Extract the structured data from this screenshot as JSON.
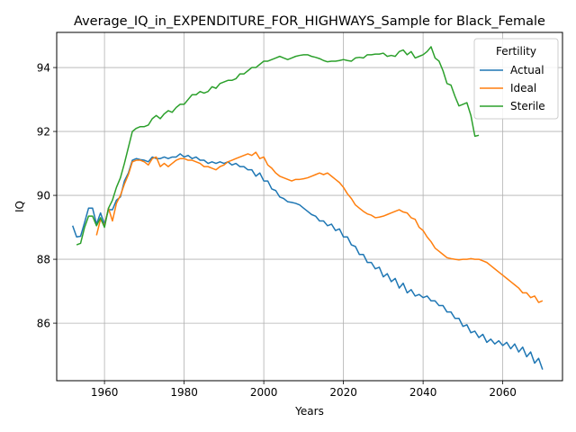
{
  "chart_data": {
    "type": "line",
    "title": "Average_IQ_in_EXPENDITURE_FOR_HIGHWAYS_Sample for Black_Female",
    "xlabel": "Years",
    "ylabel": "IQ",
    "xlim": [
      1948,
      2075
    ],
    "ylim": [
      84.2,
      95.1
    ],
    "xticks": [
      1960,
      1980,
      2000,
      2020,
      2040,
      2060
    ],
    "yticks": [
      86,
      88,
      90,
      92,
      94
    ],
    "grid": true,
    "legend": {
      "title": "Fertility",
      "placement": "top-right"
    },
    "series": [
      {
        "name": "Actual",
        "color": "#1f77b4",
        "x": [
          1952,
          1953,
          1954,
          1955,
          1956,
          1957,
          1958,
          1959,
          1960,
          1961,
          1962,
          1963,
          1964,
          1965,
          1966,
          1967,
          1968,
          1969,
          1970,
          1971,
          1972,
          1973,
          1974,
          1975,
          1976,
          1977,
          1978,
          1979,
          1980,
          1981,
          1982,
          1983,
          1984,
          1985,
          1986,
          1987,
          1988,
          1989,
          1990,
          1991,
          1992,
          1993,
          1994,
          1995,
          1996,
          1997,
          1998,
          1999,
          2000,
          2001,
          2002,
          2003,
          2004,
          2005,
          2006,
          2007,
          2008,
          2009,
          2010,
          2011,
          2012,
          2013,
          2014,
          2015,
          2016,
          2017,
          2018,
          2019,
          2020,
          2021,
          2022,
          2023,
          2024,
          2025,
          2026,
          2027,
          2028,
          2029,
          2030,
          2031,
          2032,
          2033,
          2034,
          2035,
          2036,
          2037,
          2038,
          2039,
          2040,
          2041,
          2042,
          2043,
          2044,
          2045,
          2046,
          2047,
          2048,
          2049,
          2050,
          2051,
          2052,
          2053,
          2054,
          2055,
          2056,
          2057,
          2058,
          2059,
          2060,
          2061,
          2062,
          2063,
          2064,
          2065,
          2066,
          2067,
          2068,
          2069,
          2070
        ],
        "y": [
          89.05,
          88.7,
          88.72,
          89.15,
          89.6,
          89.6,
          89.1,
          89.45,
          89.1,
          89.55,
          89.55,
          89.85,
          89.95,
          90.45,
          90.7,
          91.1,
          91.15,
          91.12,
          91.1,
          91.05,
          91.2,
          91.15,
          91.15,
          91.2,
          91.15,
          91.2,
          91.2,
          91.3,
          91.2,
          91.25,
          91.15,
          91.2,
          91.1,
          91.1,
          91.0,
          91.05,
          91.0,
          91.05,
          91.0,
          91.05,
          90.95,
          91.0,
          90.9,
          90.9,
          90.8,
          90.8,
          90.6,
          90.7,
          90.45,
          90.45,
          90.2,
          90.15,
          89.95,
          89.9,
          89.8,
          89.78,
          89.75,
          89.7,
          89.6,
          89.5,
          89.4,
          89.35,
          89.2,
          89.2,
          89.05,
          89.1,
          88.9,
          88.95,
          88.7,
          88.7,
          88.45,
          88.4,
          88.15,
          88.15,
          87.9,
          87.9,
          87.7,
          87.75,
          87.45,
          87.55,
          87.3,
          87.4,
          87.1,
          87.25,
          86.95,
          87.05,
          86.85,
          86.9,
          86.8,
          86.85,
          86.7,
          86.7,
          86.55,
          86.55,
          86.35,
          86.35,
          86.15,
          86.15,
          85.9,
          85.95,
          85.7,
          85.75,
          85.55,
          85.65,
          85.4,
          85.5,
          85.35,
          85.45,
          85.3,
          85.4,
          85.2,
          85.35,
          85.1,
          85.25,
          84.95,
          85.1,
          84.75,
          84.9,
          84.55
        ]
      },
      {
        "name": "Ideal",
        "color": "#ff7f0e",
        "x": [
          1958,
          1959,
          1960,
          1961,
          1962,
          1963,
          1964,
          1965,
          1966,
          1967,
          1968,
          1969,
          1970,
          1971,
          1972,
          1973,
          1974,
          1975,
          1976,
          1977,
          1978,
          1979,
          1980,
          1981,
          1982,
          1983,
          1984,
          1985,
          1986,
          1987,
          1988,
          1989,
          1990,
          1991,
          1992,
          1993,
          1994,
          1995,
          1996,
          1997,
          1998,
          1999,
          2000,
          2001,
          2002,
          2003,
          2004,
          2005,
          2006,
          2007,
          2008,
          2009,
          2010,
          2011,
          2012,
          2013,
          2014,
          2015,
          2016,
          2017,
          2018,
          2019,
          2020,
          2021,
          2022,
          2023,
          2024,
          2025,
          2026,
          2027,
          2028,
          2029,
          2030,
          2031,
          2032,
          2033,
          2034,
          2035,
          2036,
          2037,
          2038,
          2039,
          2040,
          2041,
          2042,
          2043,
          2044,
          2045,
          2046,
          2047,
          2048,
          2049,
          2050,
          2051,
          2052,
          2053,
          2054,
          2055,
          2056,
          2057,
          2058,
          2059,
          2060,
          2061,
          2062,
          2063,
          2064,
          2065,
          2066,
          2067,
          2068,
          2069,
          2070
        ],
        "y": [
          88.75,
          89.25,
          89.05,
          89.6,
          89.2,
          89.75,
          90.0,
          90.35,
          90.65,
          91.05,
          91.1,
          91.1,
          91.05,
          90.95,
          91.15,
          91.2,
          90.9,
          91.0,
          90.9,
          91.0,
          91.1,
          91.15,
          91.15,
          91.1,
          91.1,
          91.05,
          91.0,
          90.9,
          90.9,
          90.85,
          90.8,
          90.9,
          90.95,
          91.05,
          91.1,
          91.15,
          91.2,
          91.25,
          91.3,
          91.25,
          91.35,
          91.15,
          91.2,
          90.95,
          90.85,
          90.7,
          90.6,
          90.55,
          90.5,
          90.45,
          90.5,
          90.5,
          90.52,
          90.55,
          90.6,
          90.65,
          90.7,
          90.65,
          90.7,
          90.6,
          90.5,
          90.4,
          90.25,
          90.05,
          89.9,
          89.7,
          89.6,
          89.5,
          89.42,
          89.38,
          89.3,
          89.32,
          89.35,
          89.4,
          89.45,
          89.5,
          89.55,
          89.48,
          89.45,
          89.3,
          89.25,
          89.0,
          88.9,
          88.7,
          88.55,
          88.35,
          88.25,
          88.15,
          88.05,
          88.02,
          88.0,
          87.98,
          88.0,
          88.0,
          88.02,
          88.0,
          88.0,
          87.95,
          87.9,
          87.8,
          87.7,
          87.6,
          87.5,
          87.4,
          87.3,
          87.2,
          87.1,
          86.95,
          86.95,
          86.8,
          86.85,
          86.65,
          86.7
        ]
      },
      {
        "name": "Sterile",
        "color": "#2ca02c",
        "x": [
          1953,
          1954,
          1955,
          1956,
          1957,
          1958,
          1959,
          1960,
          1961,
          1962,
          1963,
          1964,
          1965,
          1966,
          1967,
          1968,
          1969,
          1970,
          1971,
          1972,
          1973,
          1974,
          1975,
          1976,
          1977,
          1978,
          1979,
          1980,
          1981,
          1982,
          1983,
          1984,
          1985,
          1986,
          1987,
          1988,
          1989,
          1990,
          1991,
          1992,
          1993,
          1994,
          1995,
          1996,
          1997,
          1998,
          1999,
          2000,
          2001,
          2002,
          2003,
          2004,
          2005,
          2006,
          2007,
          2008,
          2009,
          2010,
          2011,
          2012,
          2013,
          2014,
          2015,
          2016,
          2017,
          2018,
          2019,
          2020,
          2021,
          2022,
          2023,
          2024,
          2025,
          2026,
          2027,
          2028,
          2029,
          2030,
          2031,
          2032,
          2033,
          2034,
          2035,
          2036,
          2037,
          2038,
          2039,
          2040,
          2041,
          2042,
          2043,
          2044,
          2045,
          2046,
          2047,
          2048,
          2049,
          2050,
          2051,
          2052,
          2053,
          2054
        ],
        "y": [
          88.45,
          88.5,
          89.0,
          89.35,
          89.35,
          89.05,
          89.3,
          89.0,
          89.6,
          89.85,
          90.25,
          90.55,
          91.0,
          91.5,
          92.0,
          92.1,
          92.15,
          92.15,
          92.2,
          92.4,
          92.5,
          92.4,
          92.55,
          92.65,
          92.6,
          92.75,
          92.85,
          92.85,
          93.0,
          93.15,
          93.15,
          93.25,
          93.2,
          93.25,
          93.4,
          93.35,
          93.5,
          93.55,
          93.6,
          93.6,
          93.65,
          93.8,
          93.8,
          93.9,
          94.0,
          94.0,
          94.1,
          94.2,
          94.2,
          94.25,
          94.3,
          94.35,
          94.3,
          94.25,
          94.3,
          94.35,
          94.38,
          94.4,
          94.4,
          94.35,
          94.32,
          94.28,
          94.22,
          94.18,
          94.2,
          94.2,
          94.22,
          94.25,
          94.22,
          94.2,
          94.3,
          94.32,
          94.3,
          94.4,
          94.4,
          94.42,
          94.42,
          94.45,
          94.35,
          94.38,
          94.35,
          94.5,
          94.55,
          94.4,
          94.5,
          94.3,
          94.35,
          94.4,
          94.5,
          94.65,
          94.3,
          94.2,
          93.9,
          93.5,
          93.45,
          93.1,
          92.8,
          92.85,
          92.9,
          92.5,
          91.85,
          91.88
        ]
      }
    ]
  }
}
